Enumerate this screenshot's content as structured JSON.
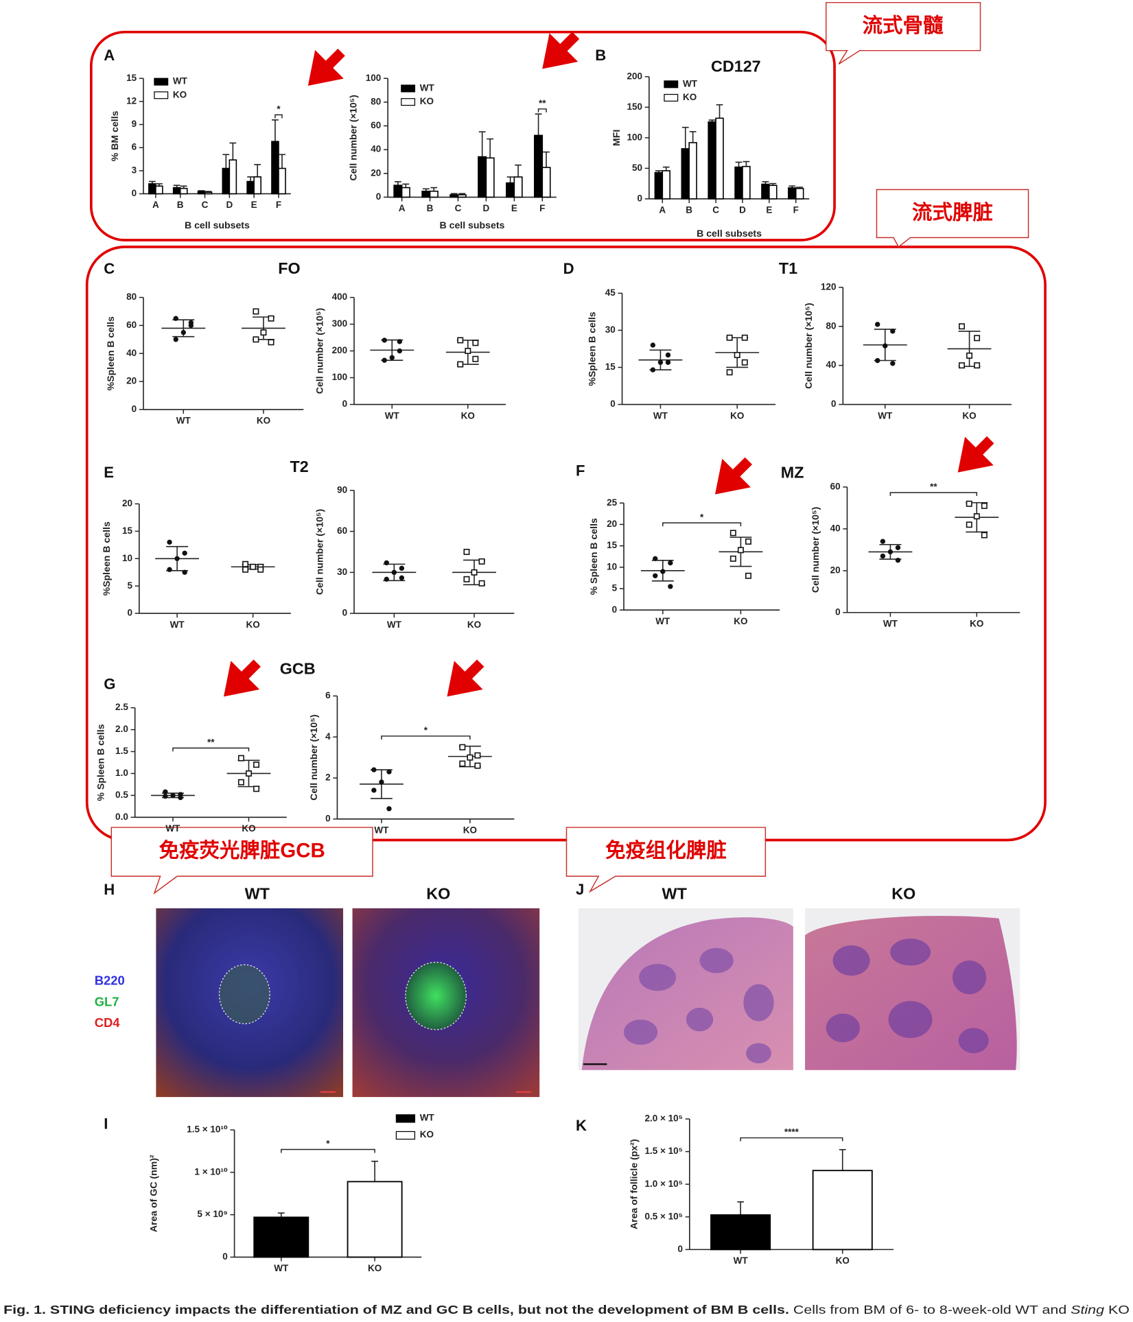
{
  "panel_labels": [
    "A",
    "B",
    "C",
    "D",
    "E",
    "F",
    "G",
    "H",
    "I",
    "J",
    "K"
  ],
  "callouts": [
    "流式骨髓",
    "流式脾脏",
    "免疫荧光脾脏GCB",
    "免疫组化脾脏"
  ],
  "images": {
    "H": {
      "titles": [
        "WT",
        "KO"
      ],
      "channels": [
        {
          "name": "B220",
          "color": "#3030e0"
        },
        {
          "name": "GL7",
          "color": "#20b040"
        },
        {
          "name": "CD4",
          "color": "#e02020"
        }
      ]
    },
    "J": {
      "titles": [
        "WT",
        "KO"
      ]
    }
  },
  "caption": {
    "bold": "Fig. 1. STING deficiency impacts the differentiation of MZ and GC B cells, but not the development of BM B cells.",
    "text": " Cells from BM of 6- to 8-week-old WT and ",
    "italic": "Sting",
    "tail": " KO"
  },
  "chart_data": [
    {
      "type": "bar",
      "ylabel": "% BM cells",
      "xlabel": "B cell subsets",
      "categories": [
        "A",
        "B",
        "C",
        "D",
        "E",
        "F"
      ],
      "ylim": [
        0,
        15
      ],
      "yticks": [
        0,
        3,
        6,
        9,
        12,
        15
      ],
      "legend": true,
      "series": [
        {
          "name": "WT",
          "color": "#000000",
          "values": [
            1.3,
            0.8,
            0.3,
            3.3,
            1.6,
            6.8
          ],
          "errors": [
            0.3,
            0.3,
            0.1,
            1.8,
            0.6,
            2.8
          ]
        },
        {
          "name": "KO",
          "color": "#ffffff",
          "values": [
            1.0,
            0.7,
            0.2,
            4.4,
            2.2,
            3.3
          ],
          "errors": [
            0.3,
            0.3,
            0.1,
            2.2,
            1.6,
            1.8
          ]
        }
      ],
      "significance_labels": [
        null,
        null,
        null,
        null,
        null,
        "*"
      ]
    },
    {
      "type": "bar",
      "ylabel": "Cell number (×10⁵)",
      "xlabel": "B cell subsets",
      "categories": [
        "A",
        "B",
        "C",
        "D",
        "E",
        "F"
      ],
      "ylim": [
        0,
        100
      ],
      "yticks": [
        0,
        20,
        40,
        60,
        80,
        100
      ],
      "legend": true,
      "series": [
        {
          "name": "WT",
          "color": "#000000",
          "values": [
            10,
            5,
            2,
            34,
            12,
            52
          ],
          "errors": [
            3,
            2,
            1,
            21,
            5,
            18
          ]
        },
        {
          "name": "KO",
          "color": "#ffffff",
          "values": [
            8,
            5,
            2,
            33,
            17,
            25
          ],
          "errors": [
            3,
            3,
            1,
            16,
            10,
            13
          ]
        }
      ],
      "significance_labels": [
        null,
        null,
        null,
        null,
        null,
        "**"
      ]
    },
    {
      "type": "bar",
      "title": "CD127",
      "ylabel": "MFI",
      "xlabel": "B cell subsets",
      "categories": [
        "A",
        "B",
        "C",
        "D",
        "E",
        "F"
      ],
      "ylim": [
        0,
        200
      ],
      "yticks": [
        0,
        50,
        100,
        150,
        200
      ],
      "legend": true,
      "series": [
        {
          "name": "WT",
          "color": "#000000",
          "values": [
            43,
            82,
            126,
            52,
            24,
            18
          ],
          "errors": [
            3,
            35,
            3,
            8,
            4,
            3
          ]
        },
        {
          "name": "KO",
          "color": "#ffffff",
          "values": [
            46,
            92,
            132,
            53,
            22,
            17
          ],
          "errors": [
            6,
            18,
            22,
            8,
            3,
            2
          ]
        }
      ]
    },
    {
      "type": "dotplot",
      "title": "FO",
      "ylabel": "%Spleen B cells",
      "categories": [
        "WT",
        "KO"
      ],
      "ylim": [
        0,
        80
      ],
      "yticks": [
        0,
        20,
        40,
        60,
        80
      ],
      "markers": [
        "circle",
        "square"
      ],
      "points": [
        [
          65,
          60,
          55,
          50,
          62
        ],
        [
          70,
          65,
          55,
          50,
          48
        ]
      ],
      "mean": [
        58,
        58
      ],
      "sd": [
        6,
        8
      ]
    },
    {
      "type": "dotplot",
      "ylabel": "Cell number (×10⁵)",
      "categories": [
        "WT",
        "KO"
      ],
      "ylim": [
        0,
        400
      ],
      "yticks": [
        0,
        100,
        200,
        300,
        400
      ],
      "markers": [
        "circle",
        "square"
      ],
      "points": [
        [
          240,
          235,
          175,
          165,
          200
        ],
        [
          240,
          230,
          200,
          150,
          170
        ]
      ],
      "mean": [
        203,
        195
      ],
      "sd": [
        38,
        45
      ]
    },
    {
      "type": "dotplot",
      "title": "T1",
      "ylabel": "%Spleen B cells",
      "categories": [
        "WT",
        "KO"
      ],
      "ylim": [
        0,
        45
      ],
      "yticks": [
        0,
        15,
        30,
        45
      ],
      "markers": [
        "circle",
        "square"
      ],
      "points": [
        [
          24,
          20,
          17,
          14,
          17
        ],
        [
          27,
          27,
          20,
          13,
          17
        ]
      ],
      "mean": [
        18,
        21
      ],
      "sd": [
        4,
        6
      ]
    },
    {
      "type": "dotplot",
      "ylabel": "Cell number (×10⁵)",
      "categories": [
        "WT",
        "KO"
      ],
      "ylim": [
        0,
        120
      ],
      "yticks": [
        0,
        40,
        80,
        120
      ],
      "markers": [
        "circle",
        "square"
      ],
      "points": [
        [
          82,
          75,
          60,
          45,
          42
        ],
        [
          80,
          68,
          50,
          40,
          40
        ]
      ],
      "mean": [
        61,
        57
      ],
      "sd": [
        16,
        18
      ]
    },
    {
      "type": "dotplot",
      "title": "T2",
      "ylabel": "%Spleen B cells",
      "categories": [
        "WT",
        "KO"
      ],
      "ylim": [
        0,
        20
      ],
      "yticks": [
        0,
        5,
        10,
        15,
        20
      ],
      "markers": [
        "circle",
        "square"
      ],
      "points": [
        [
          13,
          11,
          10,
          8,
          7.5
        ],
        [
          9,
          8.5,
          8.5,
          8,
          8
        ]
      ],
      "mean": [
        10,
        8.5
      ],
      "sd": [
        2.2,
        0.4
      ]
    },
    {
      "type": "dotplot",
      "ylabel": "Cell number (×10⁵)",
      "categories": [
        "WT",
        "KO"
      ],
      "ylim": [
        0,
        90
      ],
      "yticks": [
        0,
        30,
        60,
        90
      ],
      "markers": [
        "circle",
        "square"
      ],
      "points": [
        [
          37,
          33,
          30,
          25,
          26
        ],
        [
          45,
          38,
          30,
          25,
          22
        ]
      ],
      "mean": [
        30,
        30
      ],
      "sd": [
        6,
        9
      ]
    },
    {
      "type": "dotplot",
      "title": "MZ",
      "ylabel": "% Spleen B cells",
      "categories": [
        "WT",
        "KO"
      ],
      "ylim": [
        0,
        25
      ],
      "yticks": [
        0,
        5,
        10,
        15,
        20,
        25
      ],
      "markers": [
        "circle",
        "square"
      ],
      "points": [
        [
          12,
          11,
          9,
          8,
          5.5
        ],
        [
          18,
          16,
          14,
          12,
          8
        ]
      ],
      "mean": [
        9.2,
        13.6
      ],
      "sd": [
        2.4,
        3.4
      ],
      "significance": "*"
    },
    {
      "type": "dotplot",
      "ylabel": "Cell number (×10⁵)",
      "categories": [
        "WT",
        "KO"
      ],
      "ylim": [
        0,
        60
      ],
      "yticks": [
        0,
        20,
        40,
        60
      ],
      "markers": [
        "circle",
        "square"
      ],
      "points": [
        [
          34,
          31,
          29,
          27,
          25
        ],
        [
          52,
          51,
          46,
          42,
          37
        ]
      ],
      "mean": [
        29,
        45.5
      ],
      "sd": [
        3.5,
        7
      ],
      "significance": "**"
    },
    {
      "type": "dotplot",
      "title": "GCB",
      "ylabel": "% Spleen B cells",
      "categories": [
        "WT",
        "KO"
      ],
      "ylim": [
        0,
        2.5
      ],
      "yticks": [
        {
          "value": 0,
          "label": "0.0"
        },
        0.5,
        {
          "value": 1,
          "label": "1.0"
        },
        1.5,
        {
          "value": 2,
          "label": "2.0"
        },
        2.5
      ],
      "markers": [
        "circle",
        "square"
      ],
      "points": [
        [
          0.58,
          0.52,
          0.5,
          0.48,
          0.45
        ],
        [
          1.35,
          1.2,
          1.0,
          0.8,
          0.65
        ]
      ],
      "mean": [
        0.5,
        1.0
      ],
      "sd": [
        0.05,
        0.3
      ],
      "significance": "**"
    },
    {
      "type": "dotplot",
      "ylabel": "Cell number (×10⁵)",
      "categories": [
        "WT",
        "KO"
      ],
      "ylim": [
        0,
        6
      ],
      "yticks": [
        0,
        2,
        4,
        6
      ],
      "markers": [
        "circle",
        "square"
      ],
      "points": [
        [
          2.4,
          2.3,
          1.8,
          1.4,
          0.5
        ],
        [
          3.5,
          3.1,
          3.0,
          2.7,
          2.6
        ]
      ],
      "mean": [
        1.7,
        3.05
      ],
      "sd": [
        0.7,
        0.5
      ],
      "significance": "*"
    },
    {
      "type": "bar",
      "ylabel": "Area of GC (nm)²",
      "categories": [
        "WT",
        "KO"
      ],
      "colors": [
        "#000000",
        "#ffffff"
      ],
      "values": [
        4700000000,
        8900000000
      ],
      "errors": [
        500000000,
        2400000000
      ],
      "ylim": [
        0,
        15000000000
      ],
      "yticks": [
        0,
        {
          "value": 5000000000,
          "label": "5 × 10⁹"
        },
        {
          "value": 10000000000,
          "label": "1 × 10¹⁰"
        },
        {
          "value": 15000000000,
          "label": "1.5 × 10¹⁰"
        }
      ],
      "legend": true,
      "significance": "*"
    },
    {
      "type": "bar",
      "ylabel": "Area of follicle (px²)",
      "categories": [
        "WT",
        "KO"
      ],
      "colors": [
        "#000000",
        "#ffffff"
      ],
      "values": [
        53000,
        121000
      ],
      "errors": [
        20000,
        32000
      ],
      "ylim": [
        0,
        200000
      ],
      "yticks": [
        0,
        {
          "value": 50000,
          "label": "0.5 × 10⁵"
        },
        {
          "value": 100000,
          "label": "1.0 × 10⁵"
        },
        {
          "value": 150000,
          "label": "1.5 × 10⁵"
        },
        {
          "value": 200000,
          "label": "2.0 × 10⁵"
        }
      ],
      "significance": "****"
    }
  ]
}
